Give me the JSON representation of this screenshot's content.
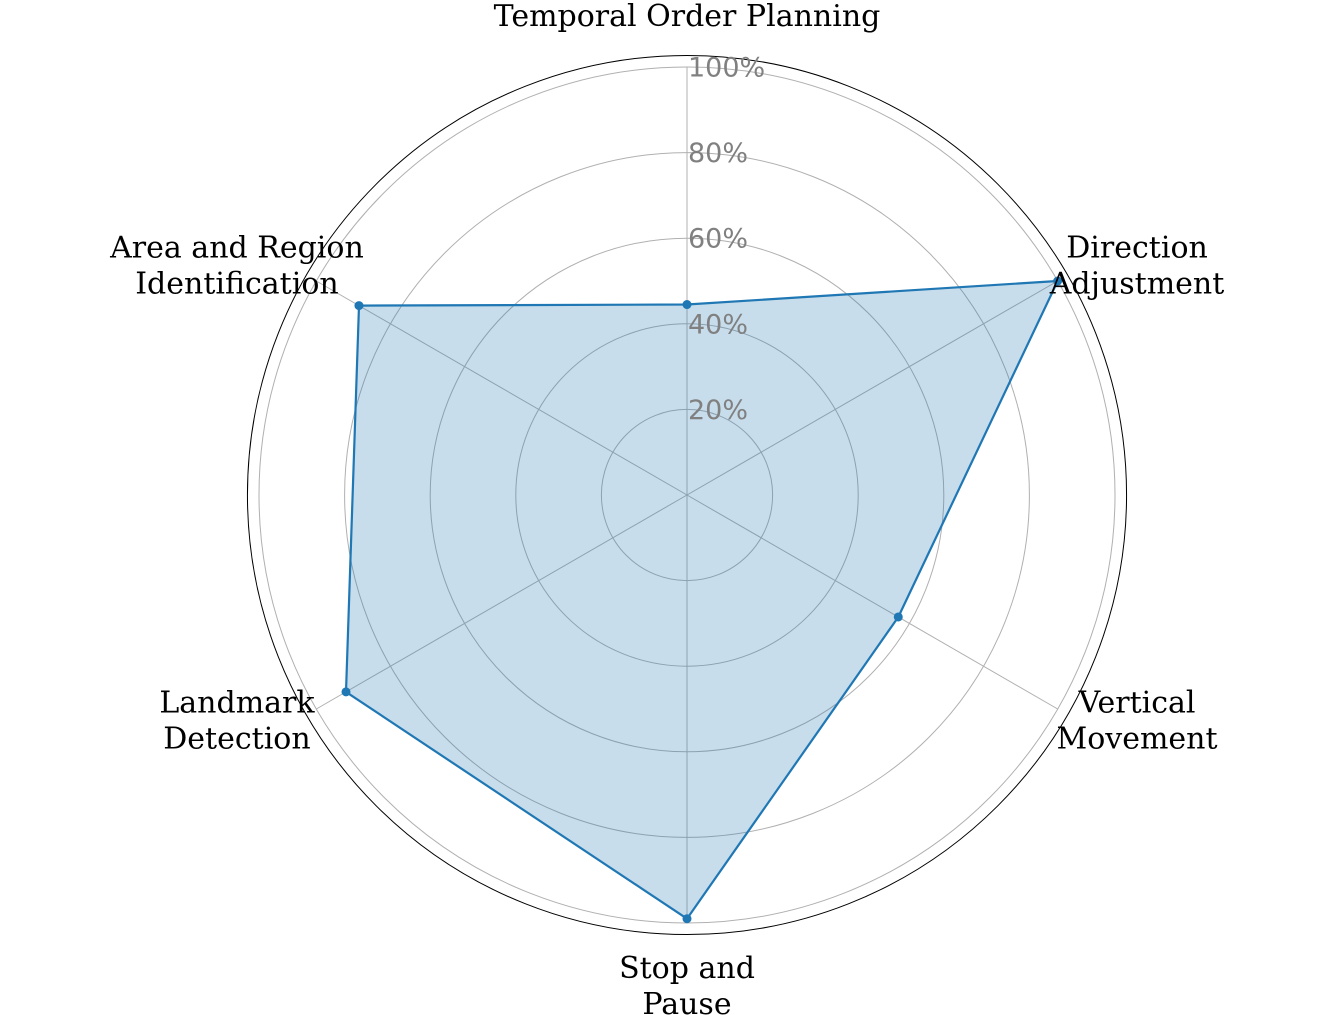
{
  "chart_data": {
    "type": "radar",
    "categories": [
      "Temporal Order Planning",
      "Direction\nAdjustment",
      "Vertical\nMovement",
      "Stop and\nPause",
      "Landmark\nDetection",
      "Area and Region\nIdentification"
    ],
    "series": [
      {
        "values": [
          44.5,
          100,
          57,
          99,
          92,
          88.5
        ]
      }
    ],
    "rlim": [
      0,
      100
    ],
    "r_ticks": [
      20,
      40,
      60,
      80,
      100
    ],
    "r_tick_labels": [
      "20%",
      "40%",
      "60%",
      "80%",
      "100%"
    ],
    "grid": true,
    "colors": {
      "line": "#1f77b4",
      "fill": "#1f77b4",
      "grid": "#b0b0b0",
      "spine": "#000000",
      "tick": "#808080"
    }
  }
}
